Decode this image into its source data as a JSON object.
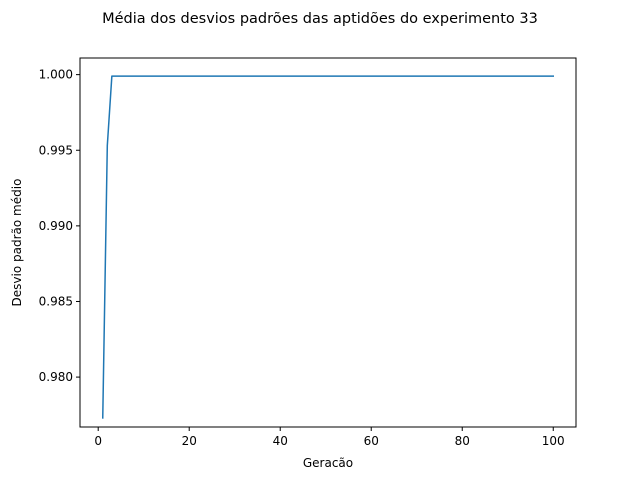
{
  "chart_data": {
    "type": "line",
    "title": "Média dos desvios padrões das aptidões do experimento 33",
    "xlabel": "Geracão",
    "ylabel": "Desvio padrão médio",
    "xlim": [
      -4,
      105
    ],
    "ylim": [
      0.9767,
      1.0011
    ],
    "grid": false,
    "legend": "none",
    "xticks": [
      0,
      20,
      40,
      60,
      80,
      100
    ],
    "xtick_labels": [
      "0",
      "20",
      "40",
      "60",
      "80",
      "100"
    ],
    "yticks": [
      0.98,
      0.985,
      0.99,
      0.995,
      1.0
    ],
    "ytick_labels": [
      "0.980",
      "0.985",
      "0.990",
      "0.995",
      "1.000"
    ],
    "series": [
      {
        "color": "#1f77b4",
        "x": [
          1,
          2,
          3,
          100
        ],
        "y": [
          0.9773,
          0.9953,
          0.9999,
          0.9999
        ]
      }
    ]
  }
}
